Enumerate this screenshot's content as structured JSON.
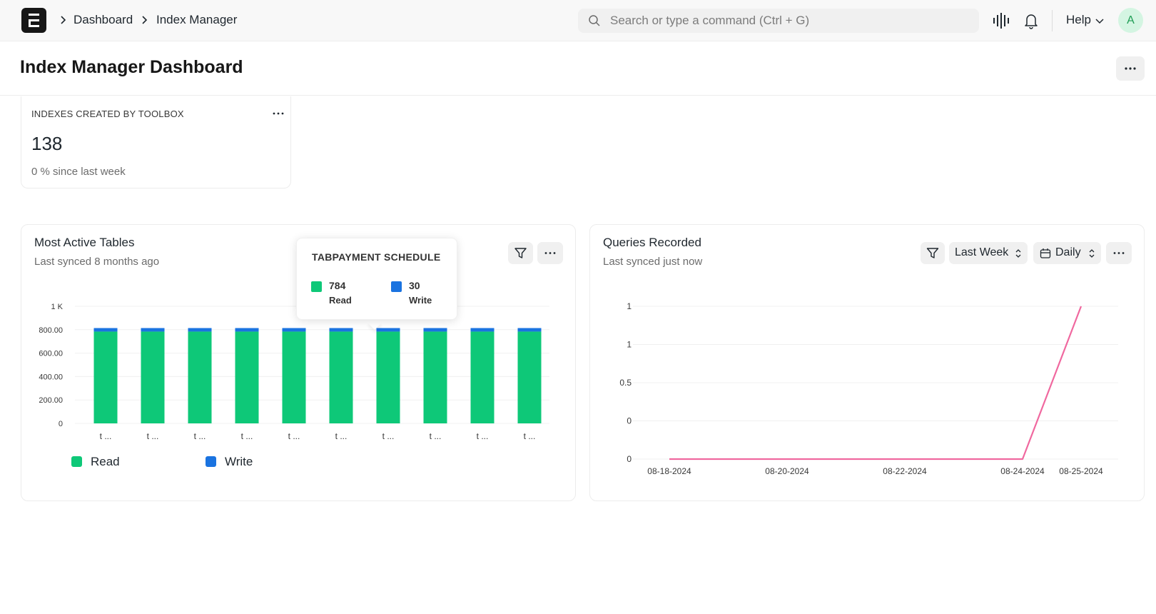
{
  "navbar": {
    "breadcrumbs": [
      "Dashboard",
      "Index Manager"
    ],
    "search_placeholder": "Search or type a command (Ctrl + G)",
    "help_label": "Help",
    "avatar_initial": "A"
  },
  "page": {
    "title": "Index Manager Dashboard"
  },
  "number_card": {
    "label": "INDEXES CREATED BY TOOLBOX",
    "value": "138",
    "subtitle": "0 % since last week"
  },
  "bar_card": {
    "title": "Most Active Tables",
    "subtitle": "Last synced 8 months ago",
    "tooltip": {
      "title": "TABPAYMENT SCHEDULE",
      "items": [
        {
          "value": "784",
          "label": "Read",
          "color": "#0ec878"
        },
        {
          "value": "30",
          "label": "Write",
          "color": "#1a73e0"
        }
      ]
    }
  },
  "line_card": {
    "title": "Queries Recorded",
    "subtitle": "Last synced just now",
    "range_label": "Last Week",
    "interval_label": "Daily"
  },
  "chart_data": [
    {
      "type": "bar",
      "stacked": true,
      "categories": [
        "t ...",
        "t ...",
        "t ...",
        "t ...",
        "t ...",
        "t ...",
        "t ...",
        "t ...",
        "t ...",
        "t ..."
      ],
      "series": [
        {
          "name": "Read",
          "values": [
            784,
            784,
            784,
            784,
            784,
            784,
            784,
            784,
            784,
            784
          ],
          "color": "#0ec878"
        },
        {
          "name": "Write",
          "values": [
            30,
            30,
            30,
            30,
            30,
            30,
            30,
            30,
            30,
            30
          ],
          "color": "#1a73e0"
        }
      ],
      "yticks": [
        "0",
        "200.00",
        "400.00",
        "600.00",
        "800.00",
        "1 K"
      ],
      "ylim": [
        0,
        1000
      ],
      "grid": true,
      "legend": "bottom-left"
    },
    {
      "type": "line",
      "x": [
        "08-18-2024",
        "08-19-2024",
        "08-20-2024",
        "08-21-2024",
        "08-22-2024",
        "08-23-2024",
        "08-24-2024",
        "08-25-2024"
      ],
      "xticks": [
        "08-18-2024",
        "08-20-2024",
        "08-22-2024",
        "08-24-2024",
        "08-25-2024"
      ],
      "series": [
        {
          "values": [
            0,
            0,
            0,
            0,
            0,
            0,
            0,
            1
          ],
          "color": "#f0689f"
        }
      ],
      "yticks": [
        "0",
        "0",
        "0.5",
        "1",
        "1"
      ],
      "ylim": [
        0,
        1
      ],
      "grid": true
    }
  ]
}
